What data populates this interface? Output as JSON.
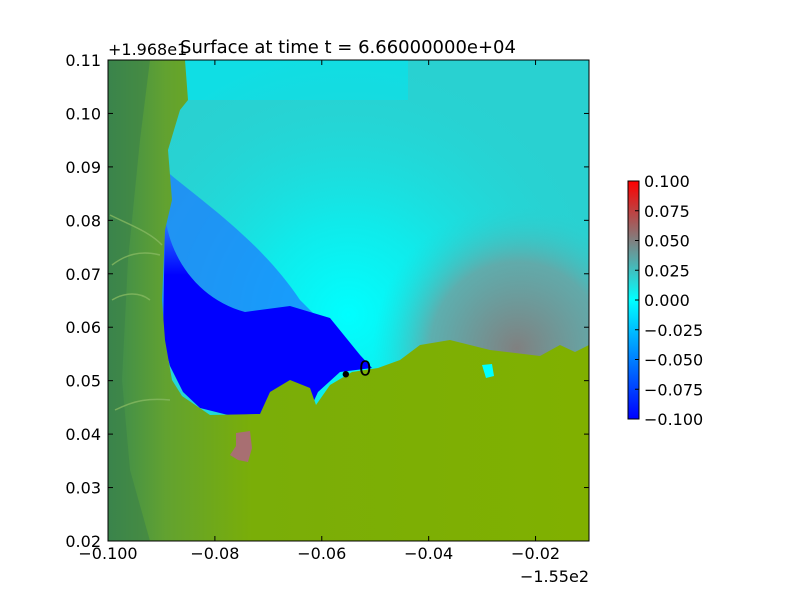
{
  "chart_data": {
    "type": "heatmap",
    "title": "Surface at time t = 6.66000000e+04",
    "x_offset_label": "−1.55e2",
    "y_offset_label": "+1.968e1",
    "xlim": [
      -0.1,
      -0.01
    ],
    "ylim": [
      0.02,
      0.11
    ],
    "x_ticks": [
      -0.1,
      -0.08,
      -0.06,
      -0.04,
      -0.02
    ],
    "x_tick_labels": [
      "−0.100",
      "−0.08",
      "−0.06",
      "−0.04",
      "−0.02"
    ],
    "y_ticks": [
      0.02,
      0.03,
      0.04,
      0.05,
      0.06,
      0.07,
      0.08,
      0.09,
      0.1,
      0.11
    ],
    "y_tick_labels": [
      "0.02",
      "0.03",
      "0.04",
      "0.05",
      "0.06",
      "0.07",
      "0.08",
      "0.09",
      "0.10",
      "0.11"
    ],
    "colorbar": {
      "range": [
        -0.1,
        0.1
      ],
      "ticks": [
        0.1,
        0.075,
        0.05,
        0.025,
        0.0,
        -0.025,
        -0.05,
        -0.075,
        -0.1
      ],
      "tick_labels": [
        "0.100",
        "0.075",
        "0.050",
        "0.025",
        "0.000",
        "−0.025",
        "−0.050",
        "−0.075",
        "−0.100"
      ],
      "colors": [
        "#0000ff",
        "#00ffff",
        "#808080",
        "#ff0000"
      ]
    },
    "gauge": {
      "label": "0",
      "x": -0.0555,
      "y": 0.0512
    },
    "colors": {
      "water_surface": "#29d1d1",
      "water_high": "#808080",
      "water_low": "#0000ff",
      "land_low": "#80b000",
      "land_high": "#3a8a50"
    }
  }
}
